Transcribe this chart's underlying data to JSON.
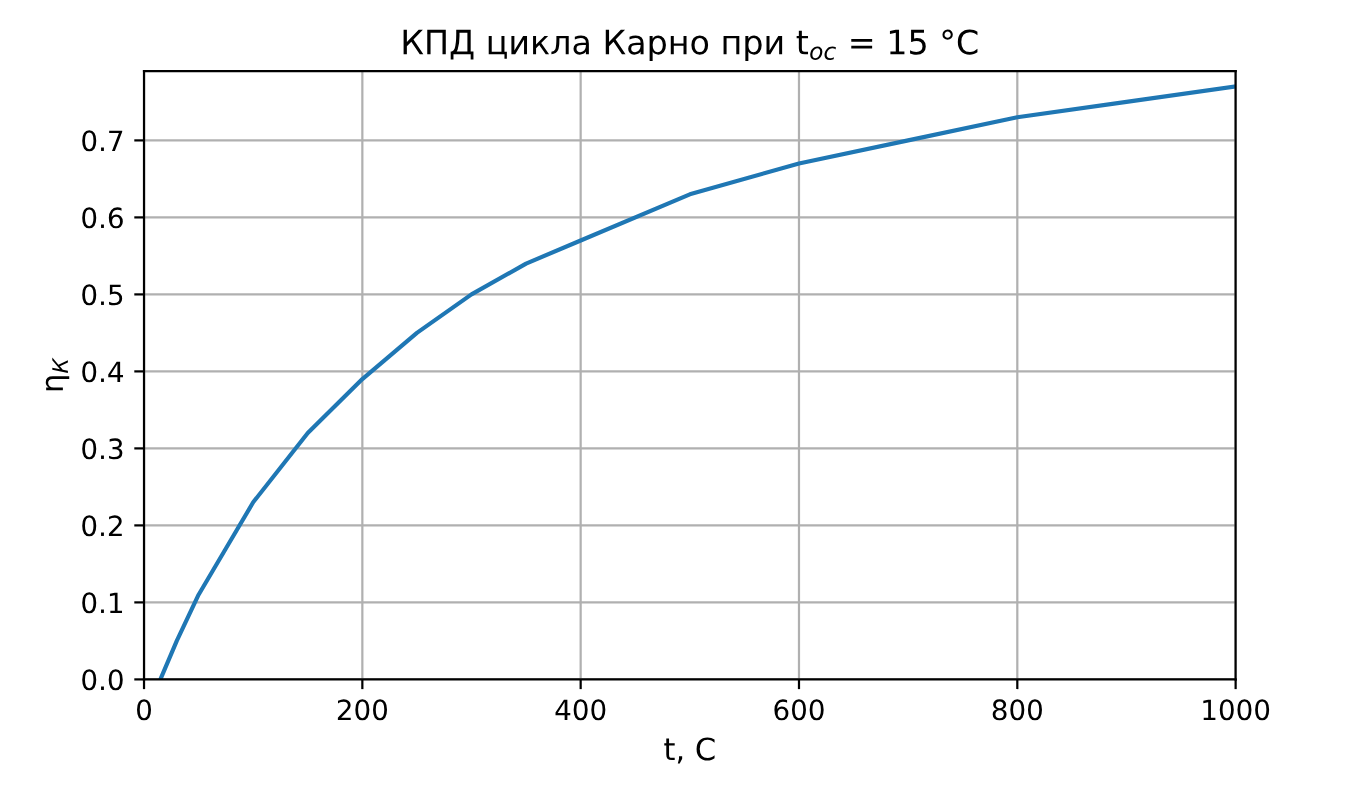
{
  "chart_data": {
    "type": "line",
    "title": "КПД цикла Карно при t$_{oc}$ = 15 °C",
    "xlabel": "t, C",
    "ylabel": "η$_{К}$",
    "x": [
      15,
      30,
      50,
      75,
      100,
      150,
      200,
      250,
      300,
      350,
      400,
      500,
      600,
      700,
      800,
      900,
      1000
    ],
    "series": [
      {
        "color": "#1f77b4",
        "values": [
          0.0,
          0.05,
          0.11,
          0.17,
          0.23,
          0.32,
          0.39,
          0.45,
          0.5,
          0.54,
          0.57,
          0.63,
          0.67,
          0.7,
          0.73,
          0.75,
          0.77
        ]
      }
    ],
    "xlim": [
      0,
      1000
    ],
    "ylim": [
      0,
      0.79
    ],
    "xticks": [
      0,
      200,
      400,
      600,
      800,
      1000
    ],
    "yticks": [
      {
        "value": 0,
        "label": "0.0"
      },
      0.1,
      0.2,
      0.3,
      0.4,
      0.5,
      0.6,
      0.7
    ],
    "grid": true
  }
}
